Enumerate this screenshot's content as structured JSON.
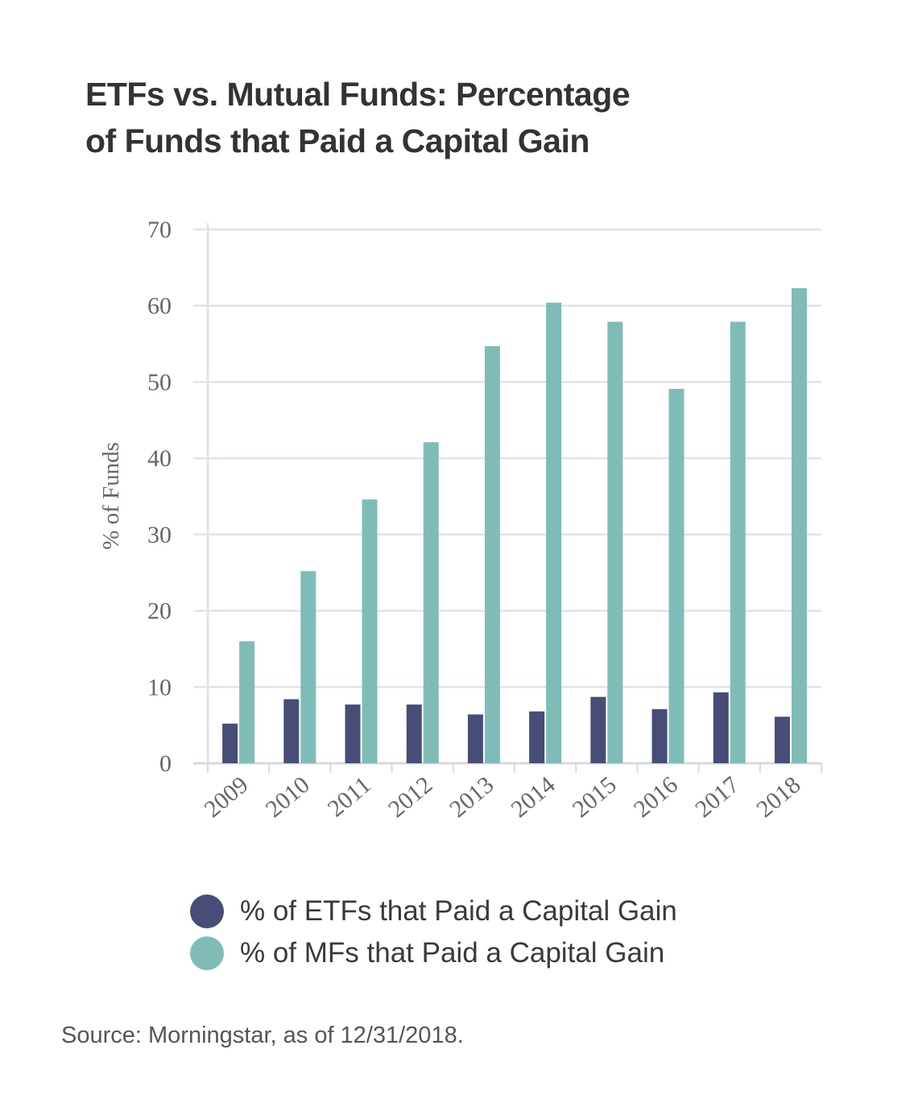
{
  "title_lines": [
    "ETFs vs. Mutual Funds: Percentage",
    "of Funds that Paid a Capital Gain"
  ],
  "source": "Source: Morningstar, as of 12/31/2018.",
  "chart_data": {
    "type": "bar",
    "ylabel": "% of Funds",
    "ylim": [
      0,
      70
    ],
    "yticks": [
      0,
      10,
      20,
      30,
      40,
      50,
      60,
      70
    ],
    "categories": [
      "2009",
      "2010",
      "2011",
      "2012",
      "2013",
      "2014",
      "2015",
      "2016",
      "2017",
      "2018"
    ],
    "series": [
      {
        "name": "% of ETFs that Paid a Capital Gain",
        "color": "#474d77",
        "values": [
          5.2,
          8.4,
          7.7,
          7.7,
          6.4,
          6.8,
          8.7,
          7.1,
          9.3,
          6.1
        ]
      },
      {
        "name": "% of MFs that Paid a Capital Gain",
        "color": "#7fbcb8",
        "values": [
          16.0,
          25.2,
          34.6,
          42.1,
          54.7,
          60.4,
          57.9,
          49.1,
          57.9,
          62.3
        ]
      }
    ],
    "grid": true,
    "legend_position": "bottom-left"
  }
}
